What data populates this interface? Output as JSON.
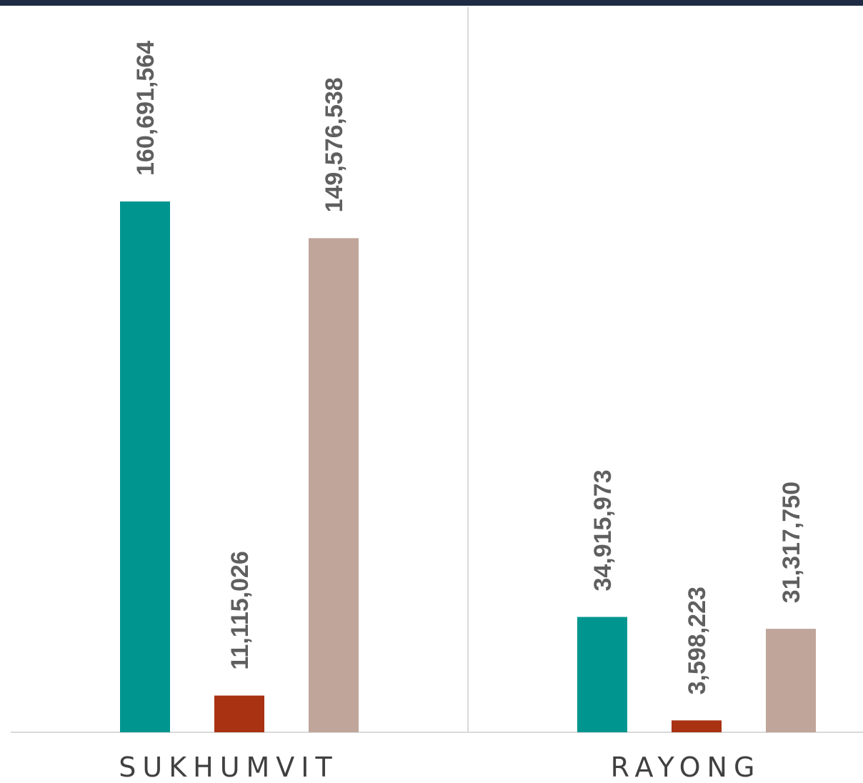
{
  "chart_data": {
    "type": "bar",
    "categories": [
      "SUKHUMVIT",
      "RAYONG"
    ],
    "series": [
      {
        "color": "#00968f",
        "values": [
          160691564,
          34915973
        ],
        "labels": [
          "160,691,564",
          "34,915,973"
        ]
      },
      {
        "color": "#a83212",
        "values": [
          11115026,
          3598223
        ],
        "labels": [
          "11,115,026",
          "3,598,223"
        ]
      },
      {
        "color": "#bfa59a",
        "values": [
          149576538,
          31317750
        ],
        "labels": [
          "149,576,538",
          "31,317,750"
        ]
      }
    ],
    "ylim": [
      0,
      160691564
    ],
    "grid": false,
    "value_labels": "rotated-above-bars"
  }
}
